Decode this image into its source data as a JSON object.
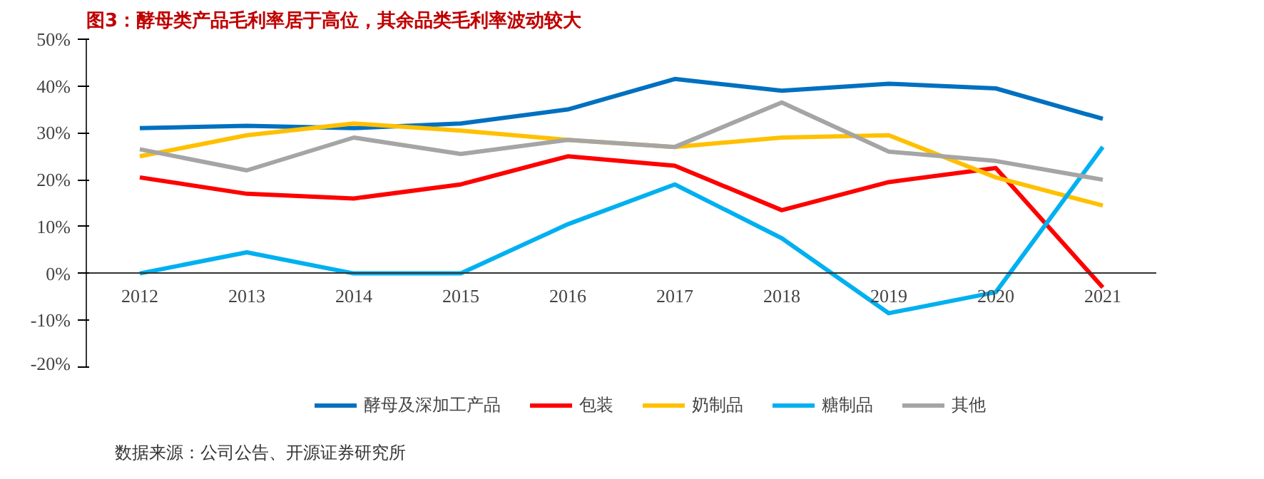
{
  "chart_data": {
    "type": "line",
    "title": "图3：酵母类产品毛利率居于高位，其余品类毛利率波动较大",
    "categories": [
      "2012",
      "2013",
      "2014",
      "2015",
      "2016",
      "2017",
      "2018",
      "2019",
      "2020",
      "2021"
    ],
    "series": [
      {
        "name": "酵母及深加工产品",
        "color": "#0070c0",
        "values": [
          31,
          31.5,
          31,
          32,
          35,
          41.5,
          39,
          40.5,
          39.5,
          33
        ]
      },
      {
        "name": "包装",
        "color": "#ff0000",
        "values": [
          20.5,
          17,
          16,
          19,
          25,
          23,
          13.5,
          19.5,
          22.5,
          -3
        ]
      },
      {
        "name": "奶制品",
        "color": "#ffc000",
        "values": [
          25,
          29.5,
          32,
          30.5,
          28.5,
          27,
          29,
          29.5,
          20.5,
          14.5
        ]
      },
      {
        "name": "糖制品",
        "color": "#00b0f0",
        "values": [
          0,
          4.5,
          0,
          0,
          10.5,
          19,
          7.5,
          -8.5,
          -4,
          27
        ]
      },
      {
        "name": "其他",
        "color": "#a5a5a5",
        "values": [
          26.5,
          22,
          29,
          25.5,
          28.5,
          27,
          36.5,
          26,
          24,
          20
        ]
      }
    ],
    "ylim": [
      -20,
      50
    ],
    "yticks": [
      {
        "value": -20,
        "label": "-20%"
      },
      {
        "value": -10,
        "label": "-10%"
      },
      {
        "value": 0,
        "label": "0%"
      },
      {
        "value": 10,
        "label": "10%"
      },
      {
        "value": 20,
        "label": "20%"
      },
      {
        "value": 30,
        "label": "30%"
      },
      {
        "value": 40,
        "label": "40%"
      },
      {
        "value": 50,
        "label": "50%"
      }
    ],
    "grid": false,
    "legend": "bottom",
    "marker": "none",
    "line_style": "solid",
    "annotations": [
      "数据来源：公司公告、开源证券研究所"
    ]
  }
}
